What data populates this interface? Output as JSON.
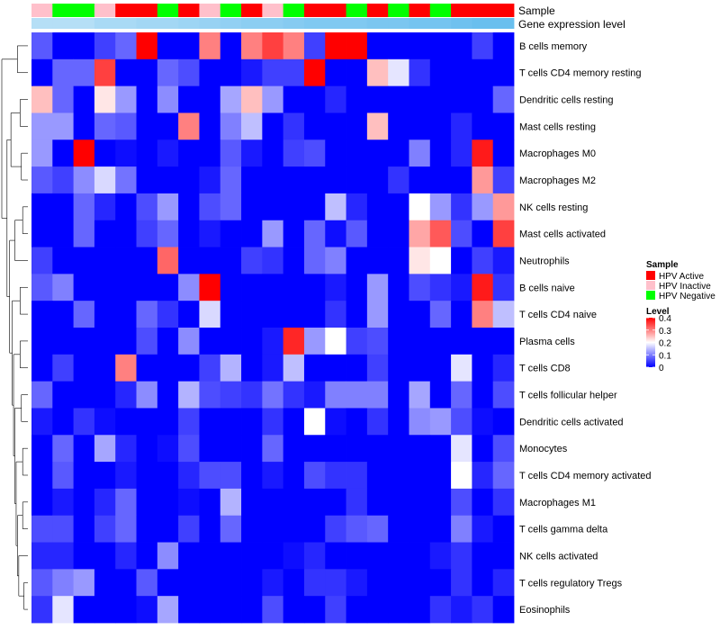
{
  "chart_data": {
    "type": "heatmap",
    "annotation_labels": [
      "Sample",
      "Gene expression level"
    ],
    "columns": 23,
    "sample_groups": [
      "HPV Inactive",
      "HPV Negative",
      "HPV Negative",
      "HPV Inactive",
      "HPV Active",
      "HPV Active",
      "HPV Negative",
      "HPV Active",
      "HPV Inactive",
      "HPV Negative",
      "HPV Active",
      "HPV Inactive",
      "HPV Negative",
      "HPV Active",
      "HPV Active",
      "HPV Negative",
      "HPV Active",
      "HPV Negative",
      "HPV Active",
      "HPV Negative",
      "HPV Active",
      "HPV Active",
      "HPV Active"
    ],
    "expression_level": [
      0.85,
      0.85,
      0.85,
      0.75,
      0.75,
      0.7,
      0.7,
      0.65,
      0.6,
      0.55,
      0.5,
      0.5,
      0.45,
      0.4,
      0.4,
      0.4,
      0.35,
      0.35,
      0.3,
      0.3,
      0.25,
      0.2,
      0.2
    ],
    "rows": [
      "B cells memory",
      "T cells CD4 memory resting",
      "Dendritic cells resting",
      "Mast cells resting",
      "Macrophages M0",
      "Macrophages M2",
      "NK cells resting",
      "Mast cells activated",
      "Neutrophils",
      "B cells naive",
      "T cells CD4 naive",
      "Plasma cells",
      "T cells CD8",
      "T cells follicular helper",
      "Dendritic cells activated",
      "Monocytes",
      "T cells CD4 memory activated",
      "Macrophages M1",
      "T cells gamma delta",
      "NK cells activated",
      "T cells regulatory  Tregs",
      "Eosinophils"
    ],
    "values": [
      [
        0.07,
        0,
        0,
        0.05,
        0.08,
        0.4,
        0,
        0,
        0.3,
        0,
        0.3,
        0.35,
        0.3,
        0.05,
        0.4,
        0.4,
        0,
        0,
        0,
        0,
        0,
        0.05,
        0
      ],
      [
        0,
        0.08,
        0.08,
        0.35,
        0,
        0,
        0.08,
        0.06,
        0,
        0,
        0.02,
        0.05,
        0.05,
        0.4,
        0,
        0,
        0.25,
        0.18,
        0.04,
        0,
        0,
        0,
        0
      ],
      [
        0.25,
        0.08,
        0,
        0.22,
        0.12,
        0,
        0.11,
        0,
        0,
        0.13,
        0.25,
        0.12,
        0,
        0,
        0.03,
        0,
        0,
        0,
        0,
        0,
        0,
        0,
        0.08
      ],
      [
        0.12,
        0.12,
        0,
        0.08,
        0.07,
        0,
        0,
        0.3,
        0,
        0.1,
        0.15,
        0,
        0.04,
        0,
        0,
        0,
        0.25,
        0,
        0,
        0,
        0.03,
        0,
        0
      ],
      [
        0.12,
        0,
        0.4,
        0,
        0.01,
        0,
        0.02,
        0,
        0,
        0.07,
        0.02,
        0,
        0.05,
        0.06,
        0,
        0,
        0,
        0,
        0.1,
        0,
        0.03,
        0.38,
        0
      ],
      [
        0.07,
        0.05,
        0.11,
        0.17,
        0.09,
        0,
        0,
        0,
        0.02,
        0.08,
        0,
        0,
        0,
        0,
        0,
        0,
        0,
        0.04,
        0,
        0,
        0,
        0.28,
        0.05
      ],
      [
        0,
        0,
        0.08,
        0.03,
        0,
        0.06,
        0.12,
        0,
        0.06,
        0.08,
        0,
        0,
        0,
        0,
        0.15,
        0.03,
        0,
        0,
        0.2,
        0.12,
        0.04,
        0.12,
        0.28
      ],
      [
        0,
        0,
        0.08,
        0,
        0,
        0.05,
        0.08,
        0,
        0.02,
        0,
        0,
        0.12,
        0,
        0.08,
        0.01,
        0.07,
        0,
        0,
        0.27,
        0.33,
        0.06,
        0,
        0.35
      ],
      [
        0.05,
        0,
        0,
        0,
        0,
        0,
        0.32,
        0,
        0,
        0,
        0.05,
        0.04,
        0,
        0.08,
        0.1,
        0,
        0,
        0,
        0.22,
        0.2,
        0,
        0.05,
        0.02
      ],
      [
        0.07,
        0.1,
        0,
        0,
        0,
        0,
        0,
        0.11,
        0.4,
        0,
        0,
        0,
        0,
        0,
        0.02,
        0,
        0.12,
        0,
        0.06,
        0.04,
        0.02,
        0.38,
        0.04
      ],
      [
        0,
        0,
        0.08,
        0,
        0,
        0.08,
        0.04,
        0,
        0.17,
        0,
        0,
        0,
        0,
        0,
        0.04,
        0,
        0.12,
        0,
        0,
        0.08,
        0,
        0.3,
        0.15
      ],
      [
        0,
        0,
        0,
        0,
        0,
        0.06,
        0,
        0.11,
        0,
        0,
        0,
        0.02,
        0.37,
        0.12,
        0.2,
        0.05,
        0.06,
        0,
        0,
        0,
        0,
        0,
        0
      ],
      [
        0,
        0.05,
        0,
        0,
        0.3,
        0,
        0,
        0,
        0.05,
        0.14,
        0,
        0.02,
        0.15,
        0,
        0,
        0,
        0.05,
        0,
        0,
        0,
        0.18,
        0,
        0.03
      ],
      [
        0.08,
        0,
        0,
        0,
        0.03,
        0.11,
        0,
        0.14,
        0.06,
        0.05,
        0.04,
        0.09,
        0.04,
        0.02,
        0.1,
        0.1,
        0.1,
        0,
        0.13,
        0,
        0.08,
        0,
        0.06
      ],
      [
        0.02,
        0,
        0.04,
        0.01,
        0,
        0,
        0,
        0.05,
        0,
        0,
        0,
        0.04,
        0,
        0.2,
        0.01,
        0,
        0.04,
        0,
        0.11,
        0.12,
        0.06,
        0.01,
        0
      ],
      [
        0,
        0.08,
        0,
        0.13,
        0.03,
        0,
        0.01,
        0.06,
        0,
        0,
        0,
        0.08,
        0,
        0,
        0,
        0,
        0,
        0,
        0,
        0,
        0.18,
        0,
        0.06
      ],
      [
        0,
        0.07,
        0,
        0,
        0.02,
        0,
        0,
        0.03,
        0.06,
        0.06,
        0,
        0.02,
        0,
        0.06,
        0.04,
        0.04,
        0,
        0,
        0,
        0,
        0.2,
        0.03,
        0.08
      ],
      [
        0,
        0.02,
        0,
        0.03,
        0.08,
        0,
        0,
        0.01,
        0,
        0.14,
        0,
        0,
        0,
        0,
        0,
        0.04,
        0,
        0,
        0,
        0,
        0.06,
        0,
        0.04
      ],
      [
        0.06,
        0.06,
        0,
        0.05,
        0.08,
        0,
        0,
        0.05,
        0,
        0.08,
        0,
        0,
        0,
        0,
        0.05,
        0.07,
        0.08,
        0,
        0,
        0,
        0.1,
        0.02,
        0
      ],
      [
        0.03,
        0.03,
        0,
        0,
        0.03,
        0,
        0.11,
        0,
        0,
        0,
        0,
        0,
        0.01,
        0.03,
        0,
        0,
        0,
        0,
        0,
        0.02,
        0.04,
        0,
        0
      ],
      [
        0.07,
        0.1,
        0.12,
        0,
        0,
        0.07,
        0,
        0,
        0,
        0,
        0,
        0.02,
        0,
        0.04,
        0.04,
        0.02,
        0,
        0,
        0,
        0,
        0.04,
        0,
        0.03
      ],
      [
        0.04,
        0.18,
        0,
        0,
        0,
        0.01,
        0.13,
        0,
        0,
        0,
        0,
        0.06,
        0,
        0,
        0.05,
        0,
        0,
        0,
        0,
        0.04,
        0.02,
        0.04,
        0
      ]
    ],
    "legend_sample": {
      "title": "Sample",
      "entries": [
        {
          "label": "HPV Active",
          "color": "#FF0000"
        },
        {
          "label": "HPV Inactive",
          "color": "#FFC0CB"
        },
        {
          "label": "HPV Negative",
          "color": "#00FF00"
        }
      ]
    },
    "legend_level": {
      "title": "Level",
      "ticks": [
        0.4,
        0.3,
        0.2,
        0.1,
        0
      ],
      "range": [
        0,
        0.4
      ],
      "colors": {
        "low": "#0000FF",
        "mid": "#FFFFFF",
        "high": "#FF0000"
      }
    },
    "expression_colors": {
      "light": "#C6E6F8",
      "dark": "#52B5EC"
    }
  }
}
